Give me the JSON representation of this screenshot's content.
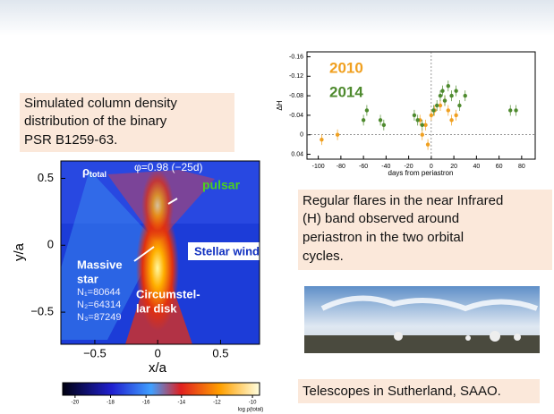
{
  "simulation": {
    "caption": [
      "Simulated column density",
      "distribution of the binary",
      "PSR B1259-63."
    ],
    "rho": "ρ",
    "rho_sub": "total",
    "phase": "φ=0.98 (−25d)",
    "pulsar": "pulsar",
    "stellar_wind": "Stellar wind",
    "massive_star": [
      "Massive",
      "star"
    ],
    "counts": [
      "N₁=80644",
      "N₂=64314",
      "N₃=87249"
    ],
    "disk": [
      "Circumstel-",
      "lar disk"
    ],
    "x_label": "x/a",
    "y_label": "y/a",
    "xlim": [
      -0.77,
      0.81
    ],
    "ylim": [
      -0.74,
      0.63
    ],
    "xticks": [
      {
        "value": -0.5,
        "label": "−0.5"
      },
      0,
      0.5
    ],
    "yticks": [
      0.5,
      0,
      {
        "value": -0.5,
        "label": "−0.5"
      }
    ],
    "colorbar": {
      "lim": [
        -20.7,
        -9.6
      ],
      "ticks": [
        -20,
        -18,
        -16,
        -14,
        -12,
        -10
      ],
      "label": "log ρ(total)"
    }
  },
  "flare_plot": {
    "caption": [
      "Regular flares in the near Infrared",
      "(H) band observed around",
      "periastron in the two orbital",
      "cycles."
    ],
    "x_label": "days from periastron",
    "y_label": "ΔH",
    "xlim": [
      -110,
      92
    ],
    "ylim": [
      -0.17,
      0.05
    ],
    "xticks": [
      -100,
      -80,
      -60,
      -40,
      -20,
      0,
      20,
      40,
      60,
      80
    ],
    "yticks": [
      -0.16,
      -0.12,
      -0.08,
      -0.04,
      0,
      0.04
    ],
    "series": [
      {
        "name": "2010",
        "color": "#f0a020",
        "x": [
          -97,
          -83,
          -10,
          -8,
          -5,
          -3,
          0,
          3,
          8,
          12,
          15,
          18,
          22
        ],
        "values": [
          0.01,
          0.0,
          -0.03,
          0.0,
          -0.02,
          0.02,
          -0.04,
          -0.05,
          -0.06,
          -0.07,
          -0.05,
          -0.03,
          -0.04
        ]
      },
      {
        "name": "2014",
        "color": "#4e8a2e",
        "x": [
          -60,
          -57,
          -45,
          -42,
          -15,
          -12,
          -8,
          2,
          5,
          8,
          10,
          12,
          15,
          18,
          22,
          25,
          30,
          70,
          75
        ],
        "values": [
          -0.03,
          -0.05,
          -0.03,
          -0.02,
          -0.04,
          -0.03,
          -0.02,
          -0.05,
          -0.06,
          -0.08,
          -0.09,
          -0.07,
          -0.1,
          -0.08,
          -0.09,
          -0.06,
          -0.08,
          -0.05,
          -0.05
        ]
      }
    ]
  },
  "telescopes": {
    "caption": "Telescopes in Sutherland, SAAO."
  }
}
